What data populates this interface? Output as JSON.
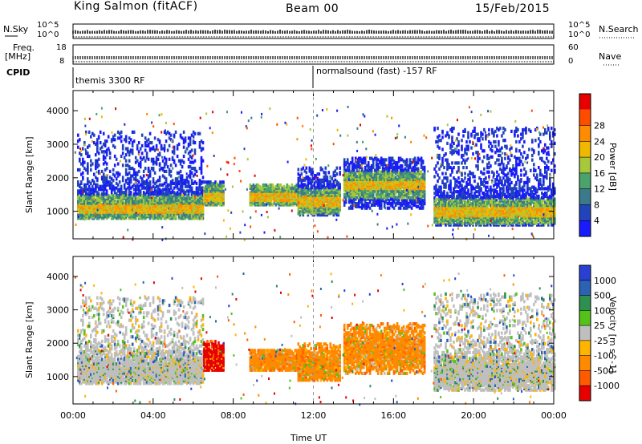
{
  "header": {
    "station": "King Salmon (fitACF)",
    "beam": "Beam 00",
    "date": "15/Feb/2015"
  },
  "left_labels": {
    "nsky": "N.Sky",
    "nsky_ticks": [
      "10^5",
      "10^0"
    ],
    "freq_1": "Freq.",
    "freq_2": "[MHz]",
    "freq_ticks": [
      "18",
      "8"
    ],
    "cpid": "CPID"
  },
  "right_labels": {
    "nsearch": "N.Search",
    "nsearch_ticks": [
      "10^5",
      "10^0"
    ],
    "nave": "Nave",
    "nave_ticks": [
      "60",
      "0"
    ]
  },
  "cpid": {
    "segments": [
      {
        "label": "themis 3300 RF",
        "start_hour": 0
      },
      {
        "label": "normalsound (fast) -157 RF",
        "start_hour": 12
      }
    ]
  },
  "chart_data": [
    {
      "type": "heatmap",
      "name": "power",
      "xlabel": "Time UT",
      "ylabel": "Slant Range [km]",
      "x_ticks": [
        "00:00",
        "04:00",
        "08:00",
        "12:00",
        "16:00",
        "20:00",
        "00:00"
      ],
      "x_range_hours": [
        0,
        24
      ],
      "y_ticks": [
        1000,
        2000,
        3000,
        4000
      ],
      "y_range_km": [
        180,
        4600
      ],
      "colorbar": {
        "title": "Power [dB]",
        "ticks": [
          "4",
          "8",
          "12",
          "16",
          "20",
          "24",
          "28"
        ],
        "colors": [
          "#1a1aff",
          "#2244bb",
          "#3a7a8a",
          "#4aa36a",
          "#a6c83a",
          "#f0b800",
          "#ff8c00",
          "#ff4d00",
          "#e60000"
        ]
      },
      "regions": [
        {
          "t0": 0.2,
          "t1": 6.5,
          "r0": 800,
          "r1": 3400,
          "core": 1100,
          "level": "high"
        },
        {
          "t0": 6.5,
          "t1": 7.5,
          "r0": 1200,
          "r1": 1900,
          "core": 1450,
          "level": "mid"
        },
        {
          "t0": 8.8,
          "t1": 11.6,
          "r0": 1200,
          "r1": 1800,
          "core": 1450,
          "level": "mid"
        },
        {
          "t0": 11.2,
          "t1": 13.3,
          "r0": 900,
          "r1": 2300,
          "core": 1300,
          "level": "mid"
        },
        {
          "t0": 13.5,
          "t1": 17.5,
          "r0": 1100,
          "r1": 2600,
          "core": 1800,
          "level": "low"
        },
        {
          "t0": 18.0,
          "t1": 24.0,
          "r0": 600,
          "r1": 3500,
          "core": 1000,
          "level": "high"
        }
      ]
    },
    {
      "type": "heatmap",
      "name": "velocity",
      "xlabel": "Time UT",
      "ylabel": "Slant Range [km]",
      "x_ticks": [
        "00:00",
        "04:00",
        "08:00",
        "12:00",
        "16:00",
        "20:00",
        "00:00"
      ],
      "x_range_hours": [
        0,
        24
      ],
      "y_ticks": [
        1000,
        2000,
        3000,
        4000
      ],
      "y_range_km": [
        180,
        4600
      ],
      "colorbar": {
        "title": "Velocity [m s^-1]",
        "ticks": [
          "1000",
          "500",
          "100",
          "25",
          "-25",
          "-100",
          "-500",
          "-1000"
        ],
        "colors": [
          "#2a3fd4",
          "#2b62b3",
          "#2e9050",
          "#55c21a",
          "#bfbfbf",
          "#ffb400",
          "#ff8a00",
          "#ff5a00",
          "#e60000"
        ]
      },
      "regions": [
        {
          "t0": 0.2,
          "t1": 6.5,
          "r0": 800,
          "r1": 3400,
          "core": 1150,
          "level": "gray"
        },
        {
          "t0": 6.5,
          "t1": 7.5,
          "r0": 1200,
          "r1": 2100,
          "core": 1450,
          "level": "red"
        },
        {
          "t0": 8.8,
          "t1": 11.6,
          "r0": 1200,
          "r1": 1800,
          "core": 1450,
          "level": "orange"
        },
        {
          "t0": 11.2,
          "t1": 13.3,
          "r0": 900,
          "r1": 2000,
          "core": 1300,
          "level": "orange"
        },
        {
          "t0": 13.5,
          "t1": 17.5,
          "r0": 1100,
          "r1": 2600,
          "core": 1800,
          "level": "orange"
        },
        {
          "t0": 18.0,
          "t1": 24.0,
          "r0": 600,
          "r1": 3500,
          "core": 1100,
          "level": "gray"
        }
      ]
    }
  ]
}
